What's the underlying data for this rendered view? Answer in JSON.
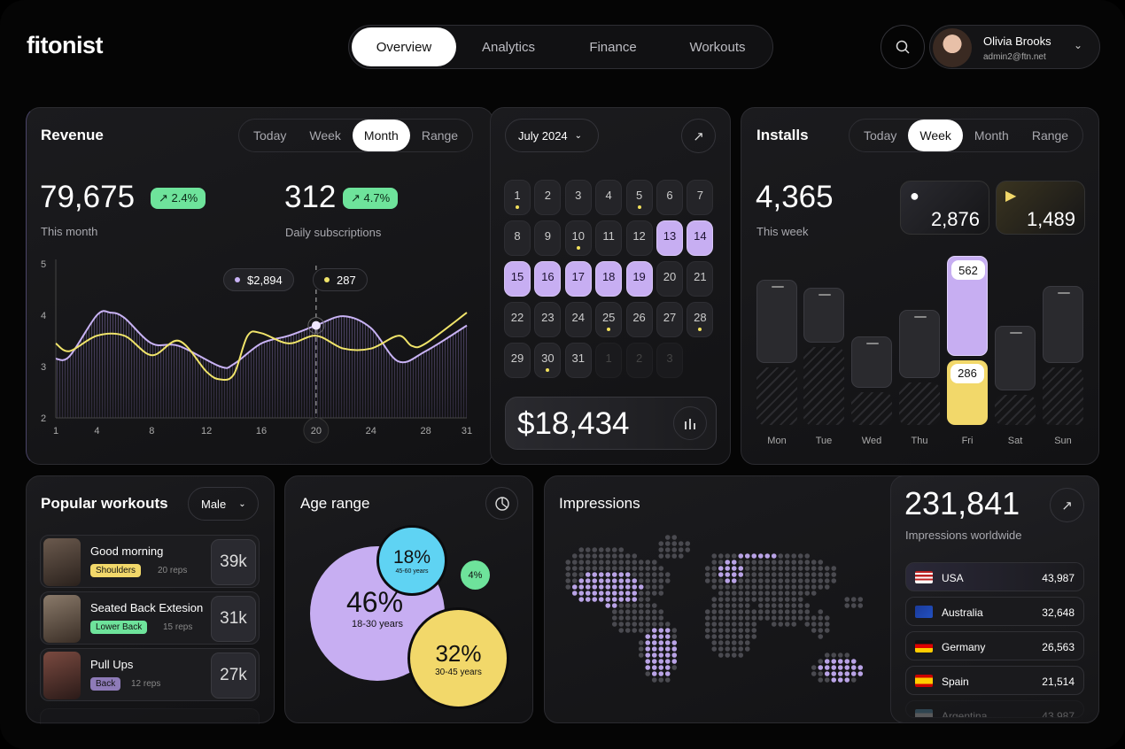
{
  "app": {
    "logo": "fitonist"
  },
  "nav": {
    "tabs": [
      {
        "label": "Overview",
        "active": true
      },
      {
        "label": "Analytics"
      },
      {
        "label": "Finance"
      },
      {
        "label": "Workouts"
      }
    ]
  },
  "user": {
    "name": "Olivia Brooks",
    "email": "admin2@ftn.net"
  },
  "revenue": {
    "title": "Revenue",
    "periods": [
      "Today",
      "Week",
      "Month",
      "Range"
    ],
    "active_period": "Month",
    "this_month": "79,675",
    "this_month_change": "↗ 2.4%",
    "this_month_label": "This month",
    "subs": "312",
    "subs_change": "↗ 4.7%",
    "subs_label": "Daily subscriptions",
    "tooltip_revenue": "$2,894",
    "tooltip_subs": "287"
  },
  "chart_data": {
    "type": "line",
    "x_ticks": [
      1,
      4,
      8,
      12,
      16,
      20,
      24,
      28,
      31
    ],
    "y_ticks": [
      2,
      3,
      4,
      5
    ],
    "ylim": [
      2,
      5
    ],
    "xlim": [
      1,
      31
    ],
    "highlight_x": 20,
    "grid": false,
    "series": [
      {
        "color": "#c9b3f5",
        "points": [
          [
            1,
            3.15
          ],
          [
            2,
            3.2
          ],
          [
            4,
            4.0
          ],
          [
            5,
            4.05
          ],
          [
            6,
            3.95
          ],
          [
            8,
            3.45
          ],
          [
            10,
            3.4
          ],
          [
            13,
            3.0
          ],
          [
            14,
            3.05
          ],
          [
            16,
            3.45
          ],
          [
            18,
            3.6
          ],
          [
            20,
            3.8
          ],
          [
            22,
            3.98
          ],
          [
            24,
            3.75
          ],
          [
            26,
            3.1
          ],
          [
            28,
            3.3
          ],
          [
            31,
            3.8
          ]
        ]
      },
      {
        "color": "#f0e46a",
        "points": [
          [
            1,
            3.45
          ],
          [
            2,
            3.3
          ],
          [
            4,
            3.6
          ],
          [
            6,
            3.6
          ],
          [
            8,
            3.22
          ],
          [
            10,
            3.5
          ],
          [
            12,
            2.9
          ],
          [
            13,
            2.75
          ],
          [
            14,
            2.85
          ],
          [
            15,
            3.6
          ],
          [
            16,
            3.65
          ],
          [
            18,
            3.45
          ],
          [
            20,
            3.6
          ],
          [
            22,
            3.35
          ],
          [
            24,
            3.35
          ],
          [
            26,
            3.6
          ],
          [
            27,
            3.4
          ],
          [
            28,
            3.45
          ],
          [
            31,
            4.05
          ]
        ]
      }
    ]
  },
  "calendar": {
    "month": "July 2024",
    "total": "$18,434",
    "days": [
      {
        "d": "1",
        "ev": true
      },
      {
        "d": "2"
      },
      {
        "d": "3"
      },
      {
        "d": "4"
      },
      {
        "d": "5",
        "ev": true
      },
      {
        "d": "6"
      },
      {
        "d": "7"
      },
      {
        "d": "8"
      },
      {
        "d": "9"
      },
      {
        "d": "10",
        "ev": true
      },
      {
        "d": "11"
      },
      {
        "d": "12"
      },
      {
        "d": "13",
        "sel": true
      },
      {
        "d": "14",
        "sel": true
      },
      {
        "d": "15",
        "sel": true
      },
      {
        "d": "16",
        "sel": true
      },
      {
        "d": "17",
        "sel": true
      },
      {
        "d": "18",
        "sel": true
      },
      {
        "d": "19",
        "sel": true
      },
      {
        "d": "20"
      },
      {
        "d": "21"
      },
      {
        "d": "22"
      },
      {
        "d": "23"
      },
      {
        "d": "24"
      },
      {
        "d": "25",
        "ev": true
      },
      {
        "d": "26"
      },
      {
        "d": "27"
      },
      {
        "d": "28",
        "ev": true
      },
      {
        "d": "29"
      },
      {
        "d": "30",
        "ev": true
      },
      {
        "d": "31"
      },
      {
        "d": "1",
        "out": true
      },
      {
        "d": "2",
        "out": true
      },
      {
        "d": "3",
        "out": true
      }
    ]
  },
  "installs": {
    "title": "Installs",
    "periods": [
      "Today",
      "Week",
      "Month",
      "Range"
    ],
    "active_period": "Week",
    "total": "4,365",
    "total_label": "This week",
    "ios": "2,876",
    "android": "1,489",
    "days": [
      {
        "label": "Mon",
        "top": 470,
        "bottom": 255
      },
      {
        "label": "Tue",
        "top": 310,
        "bottom": 345
      },
      {
        "label": "Wed",
        "top": 290,
        "bottom": 145
      },
      {
        "label": "Thu",
        "top": 385,
        "bottom": 188
      },
      {
        "label": "Fri",
        "top": 562,
        "bottom": 286,
        "highlight": true,
        "top_label": "562",
        "bottom_label": "286"
      },
      {
        "label": "Sat",
        "top": 365,
        "bottom": 133
      },
      {
        "label": "Sun",
        "top": 435,
        "bottom": 255
      }
    ]
  },
  "workouts": {
    "title": "Popular workouts",
    "filter": "Male",
    "items": [
      {
        "name": "Good morning",
        "tag": "Shoulders",
        "tag_color": "#f2d86a",
        "reps": "20 reps",
        "count": "39k"
      },
      {
        "name": "Seated Back Extesion",
        "tag": "Lower Back",
        "tag_color": "#6ee39b",
        "reps": "15 reps",
        "count": "31k"
      },
      {
        "name": "Pull Ups",
        "tag": "Back",
        "tag_color": "#8e7bb8",
        "reps": "12 reps",
        "count": "27k"
      }
    ]
  },
  "age": {
    "title": "Age range",
    "groups": [
      {
        "pct": "46%",
        "label": "18-30 years",
        "color": "#c7aef2"
      },
      {
        "pct": "18%",
        "label": "45-60 years",
        "color": "#5fd3f3"
      },
      {
        "pct": "32%",
        "label": "30-45 years",
        "color": "#f2d86a"
      },
      {
        "pct": "4%",
        "label": "",
        "color": "#6ee39b"
      }
    ]
  },
  "impressions": {
    "title": "Impressions",
    "total": "231,841",
    "total_label": "Impressions worldwide",
    "countries": [
      {
        "name": "USA",
        "value": "43,987"
      },
      {
        "name": "Australia",
        "value": "32,648"
      },
      {
        "name": "Germany",
        "value": "26,563"
      },
      {
        "name": "Spain",
        "value": "21,514"
      },
      {
        "name": "Argentina",
        "value": "43,987"
      }
    ]
  }
}
